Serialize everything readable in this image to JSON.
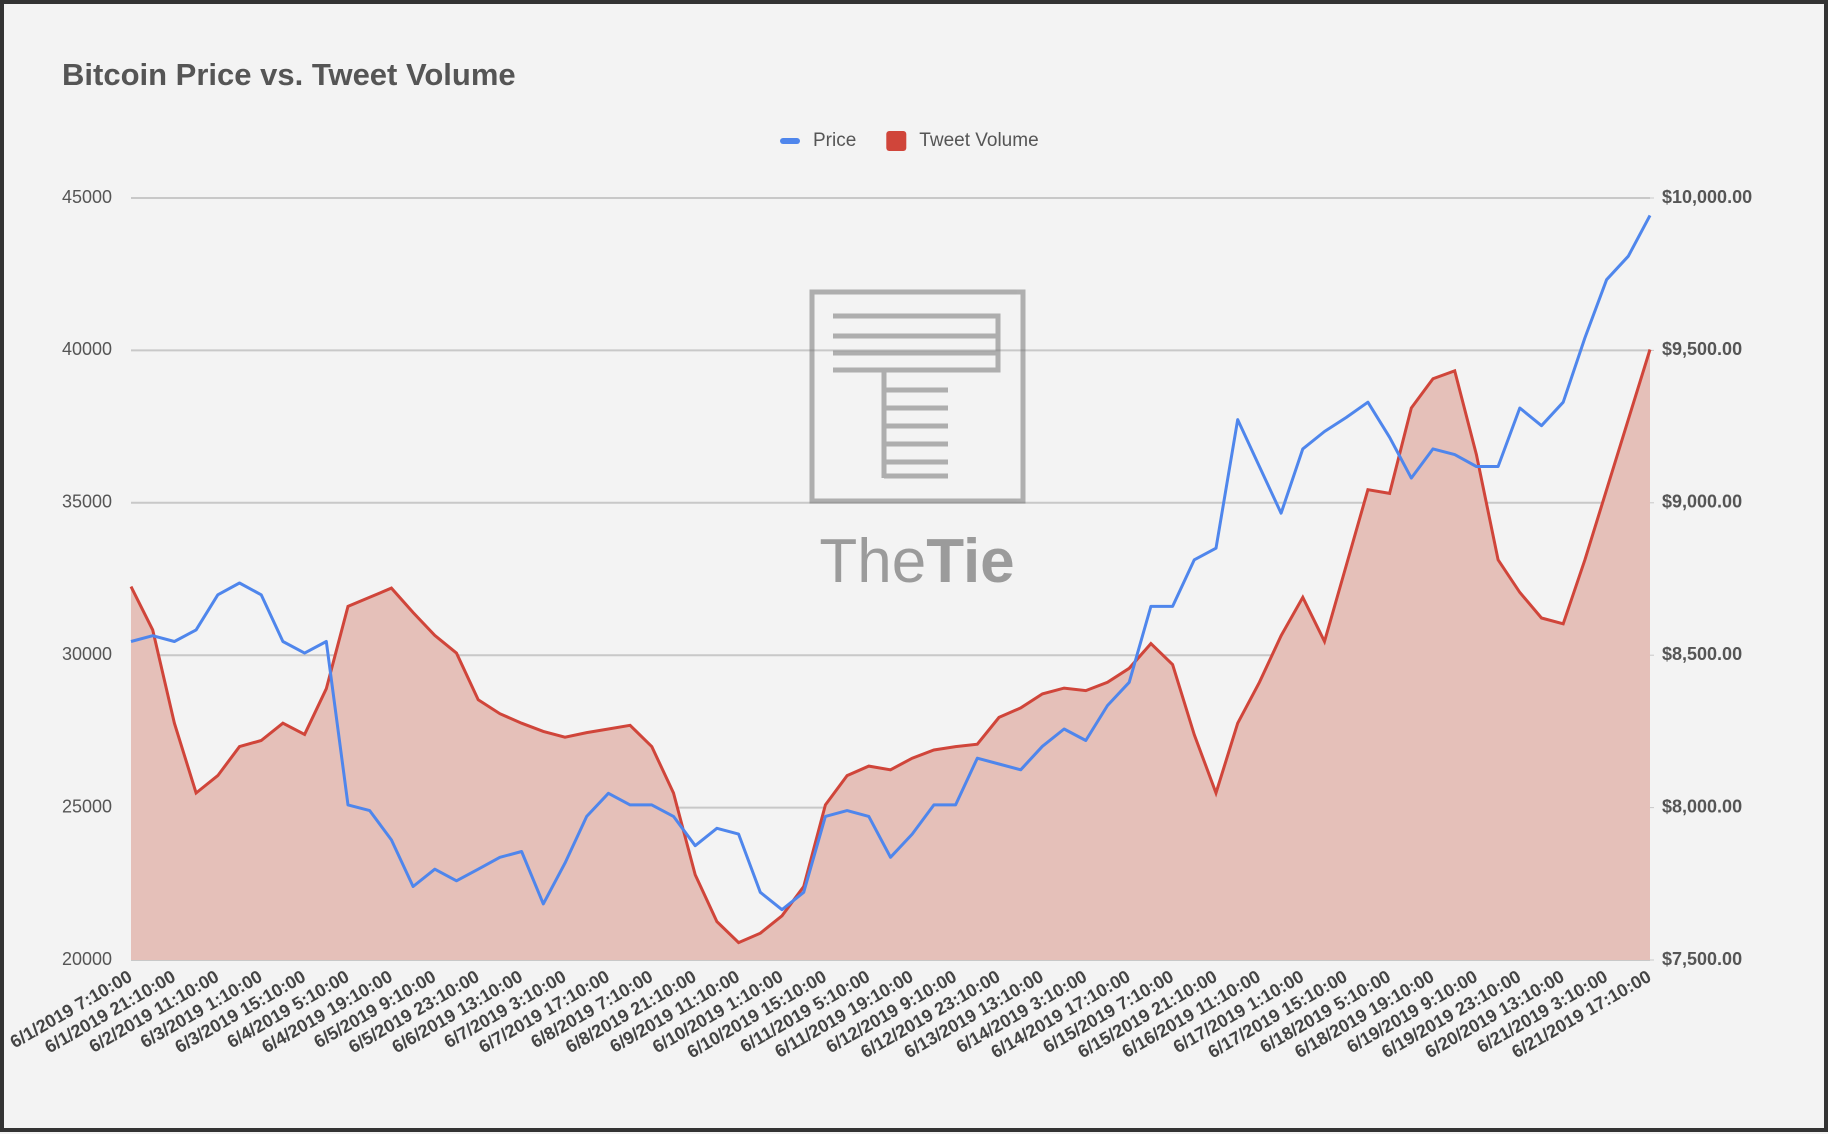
{
  "chart_data": {
    "type": "line-area",
    "title": "Bitcoin Price vs. Tweet Volume",
    "watermark": {
      "light": "The",
      "bold": "Tie"
    },
    "legend": "top",
    "grid": true,
    "categories": [
      "6/1/2019 7:10:00",
      null,
      "6/1/2019 21:10:00",
      null,
      "6/2/2019 11:10:00",
      null,
      "6/3/2019 1:10:00",
      null,
      "6/3/2019 15:10:00",
      null,
      "6/4/2019 5:10:00",
      null,
      "6/4/2019 19:10:00",
      null,
      "6/5/2019 9:10:00",
      null,
      "6/5/2019 23:10:00",
      null,
      "6/6/2019 13:10:00",
      null,
      "6/7/2019 3:10:00",
      null,
      "6/7/2019 17:10:00",
      null,
      "6/8/2019 7:10:00",
      null,
      "6/8/2019 21:10:00",
      null,
      "6/9/2019 11:10:00",
      null,
      "6/10/2019 1:10:00",
      null,
      "6/10/2019 15:10:00",
      null,
      "6/11/2019 5:10:00",
      null,
      "6/11/2019 19:10:00",
      null,
      "6/12/2019 9:10:00",
      null,
      "6/12/2019 23:10:00",
      null,
      "6/13/2019 13:10:00",
      null,
      "6/14/2019 3:10:00",
      null,
      "6/14/2019 17:10:00",
      null,
      "6/15/2019 7:10:00",
      null,
      "6/15/2019 21:10:00",
      null,
      "6/16/2019 11:10:00",
      null,
      "6/17/2019 1:10:00",
      null,
      "6/17/2019 15:10:00",
      null,
      "6/18/2019 5:10:00",
      null,
      "6/18/2019 19:10:00",
      null,
      "6/19/2019 9:10:00",
      null,
      "6/19/2019 23:10:00",
      null,
      "6/20/2019 13:10:00",
      null,
      "6/21/2019 3:10:00",
      null,
      "6/21/2019 17:10:00"
    ],
    "series": [
      {
        "name": "Price",
        "color": "#4f86ec",
        "axis": "y2",
        "kind": "line",
        "values": [
          8545,
          8564,
          8545,
          8583,
          8698,
          8737,
          8698,
          8545,
          8507,
          8545,
          8009,
          7990,
          7894,
          7741,
          7798,
          7760,
          7798,
          7837,
          7856,
          7684,
          7818,
          7971,
          8047,
          8009,
          8009,
          7971,
          7875,
          7932,
          7913,
          7722,
          7665,
          7722,
          7971,
          7990,
          7971,
          7837,
          7913,
          8009,
          8009,
          8162,
          8143,
          8124,
          8201,
          8258,
          8220,
          8335,
          8411,
          8660,
          8660,
          8813,
          8851,
          9273,
          9119,
          8966,
          9177,
          9234,
          9280,
          9330,
          9215,
          9081,
          9177,
          9158,
          9119,
          9119,
          9311,
          9253,
          9330,
          9541,
          9732,
          9809,
          9943
        ]
      },
      {
        "name": "Tweet Volume",
        "color": "#d0453a",
        "fill": "#e5c0b9",
        "axis": "y",
        "kind": "area",
        "values": [
          32250,
          30830,
          27770,
          25480,
          26050,
          27000,
          27200,
          27770,
          27400,
          28900,
          31600,
          31900,
          32200,
          31400,
          30650,
          30070,
          28540,
          28080,
          27770,
          27500,
          27310,
          27460,
          27580,
          27700,
          27000,
          25480,
          22800,
          21260,
          20570,
          20880,
          21450,
          22410,
          25090,
          26050,
          26360,
          26240,
          26620,
          26890,
          27000,
          27080,
          27960,
          28270,
          28730,
          28920,
          28840,
          29110,
          29570,
          30380,
          29690,
          27390,
          25480,
          27770,
          29110,
          30640,
          31900,
          30450,
          32940,
          35430,
          35310,
          38110,
          39070,
          39330,
          36580,
          33130,
          32060,
          31220,
          31030,
          33130,
          35430,
          37730,
          40030
        ]
      }
    ],
    "ylim": [
      20000,
      45000
    ],
    "yticks": [
      20000,
      25000,
      30000,
      35000,
      40000,
      45000
    ],
    "y2lim": [
      7500,
      10000
    ],
    "y2ticks": [
      {
        "value": 7500,
        "label": "$7,500.00"
      },
      {
        "value": 8000,
        "label": "$8,000.00"
      },
      {
        "value": 8500,
        "label": "$8,500.00"
      },
      {
        "value": 9000,
        "label": "$9,000.00"
      },
      {
        "value": 9500,
        "label": "$9,500.00"
      },
      {
        "value": 10000,
        "label": "$10,000.00"
      }
    ]
  }
}
